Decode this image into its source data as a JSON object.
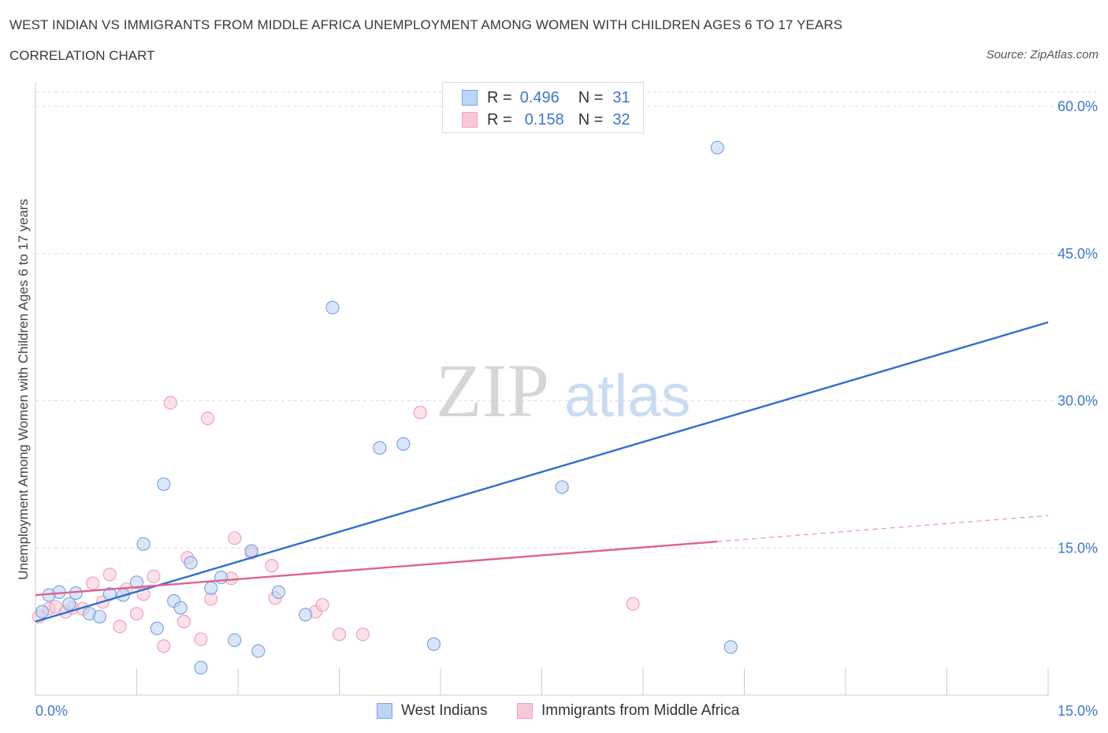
{
  "title": "WEST INDIAN VS IMMIGRANTS FROM MIDDLE AFRICA UNEMPLOYMENT AMONG WOMEN WITH CHILDREN AGES 6 TO 17 YEARS",
  "subtitle": "CORRELATION CHART",
  "source": "Source: ZipAtlas.com",
  "watermark": {
    "zip": "ZIP",
    "atlas": "atlas"
  },
  "legend_top": [
    {
      "r_label": "R =",
      "r_value": "0.496",
      "n_label": "N =",
      "n_value": "31"
    },
    {
      "r_label": "R =",
      "r_value": "0.158",
      "n_label": "N =",
      "n_value": "32"
    }
  ],
  "colors": {
    "blue_fill": "#bcd4f5",
    "blue_stroke": "#7aa6e0",
    "blue_line": "#2f6fcf",
    "pink_fill": "#f8c8d6",
    "pink_stroke": "#eea3b9",
    "pink_line": "#e0628c",
    "tick_label": "#3b78d0",
    "grid": "#dddddd"
  },
  "chart_data": {
    "type": "scatter",
    "title": "WEST INDIAN VS IMMIGRANTS FROM MIDDLE AFRICA UNEMPLOYMENT AMONG WOMEN WITH CHILDREN AGES 6 TO 17 YEARS",
    "xlabel": "",
    "ylabel": "Unemployment Among Women with Children Ages 6 to 17 years",
    "xlim": [
      0,
      15
    ],
    "ylim": [
      0,
      60
    ],
    "x_tick_labels": [
      "0.0%",
      "15.0%"
    ],
    "y_ticks": [
      15,
      30,
      45,
      60
    ],
    "y_tick_labels": [
      "15.0%",
      "30.0%",
      "45.0%",
      "60.0%"
    ],
    "grid": true,
    "legend_position": "bottom",
    "series": [
      {
        "name": "West Indians",
        "r": 0.496,
        "n": 31,
        "trend": {
          "x_start": 0.0,
          "y_start": 7.5,
          "x_end": 15.0,
          "y_end": 38.0,
          "dashed_after": null
        },
        "points": [
          [
            0.1,
            8.5
          ],
          [
            0.2,
            10.2
          ],
          [
            0.35,
            10.5
          ],
          [
            0.5,
            9.3
          ],
          [
            0.6,
            10.4
          ],
          [
            0.8,
            8.3
          ],
          [
            0.95,
            8.0
          ],
          [
            1.1,
            10.3
          ],
          [
            1.3,
            10.2
          ],
          [
            1.5,
            11.5
          ],
          [
            1.6,
            15.4
          ],
          [
            1.8,
            6.8
          ],
          [
            1.9,
            21.5
          ],
          [
            2.05,
            9.6
          ],
          [
            2.15,
            8.9
          ],
          [
            2.3,
            13.5
          ],
          [
            2.45,
            2.8
          ],
          [
            2.6,
            10.9
          ],
          [
            2.75,
            12.0
          ],
          [
            2.95,
            5.6
          ],
          [
            3.2,
            14.7
          ],
          [
            3.3,
            4.5
          ],
          [
            3.6,
            10.5
          ],
          [
            4.0,
            8.2
          ],
          [
            4.4,
            39.5
          ],
          [
            5.1,
            25.2
          ],
          [
            5.45,
            25.6
          ],
          [
            5.9,
            5.2
          ],
          [
            7.8,
            21.2
          ],
          [
            10.1,
            55.8
          ],
          [
            10.3,
            4.9
          ]
        ]
      },
      {
        "name": "Immigrants from Middle Africa",
        "r": 0.158,
        "n": 32,
        "trend": {
          "x_start": 0.0,
          "y_start": 10.2,
          "x_end": 15.0,
          "y_end": 18.3,
          "dashed_after": 10.1
        },
        "points": [
          [
            0.05,
            8.0
          ],
          [
            0.2,
            8.8
          ],
          [
            0.3,
            9.0
          ],
          [
            0.45,
            8.5
          ],
          [
            0.55,
            8.9
          ],
          [
            0.7,
            8.8
          ],
          [
            0.85,
            11.4
          ],
          [
            1.0,
            9.5
          ],
          [
            1.1,
            12.3
          ],
          [
            1.25,
            7.0
          ],
          [
            1.35,
            10.8
          ],
          [
            1.5,
            8.3
          ],
          [
            1.6,
            10.3
          ],
          [
            1.75,
            12.1
          ],
          [
            1.9,
            5.0
          ],
          [
            2.0,
            29.8
          ],
          [
            2.2,
            7.5
          ],
          [
            2.25,
            14.0
          ],
          [
            2.45,
            5.7
          ],
          [
            2.55,
            28.2
          ],
          [
            2.6,
            9.8
          ],
          [
            2.9,
            11.9
          ],
          [
            2.95,
            16.0
          ],
          [
            3.2,
            14.5
          ],
          [
            3.5,
            13.2
          ],
          [
            3.55,
            9.9
          ],
          [
            4.15,
            8.5
          ],
          [
            4.25,
            9.2
          ],
          [
            4.5,
            6.2
          ],
          [
            4.85,
            6.2
          ],
          [
            5.7,
            28.8
          ],
          [
            8.85,
            9.3
          ]
        ]
      }
    ]
  },
  "bottom_legend": [
    {
      "label": "West Indians"
    },
    {
      "label": "Immigrants from Middle Africa"
    }
  ]
}
